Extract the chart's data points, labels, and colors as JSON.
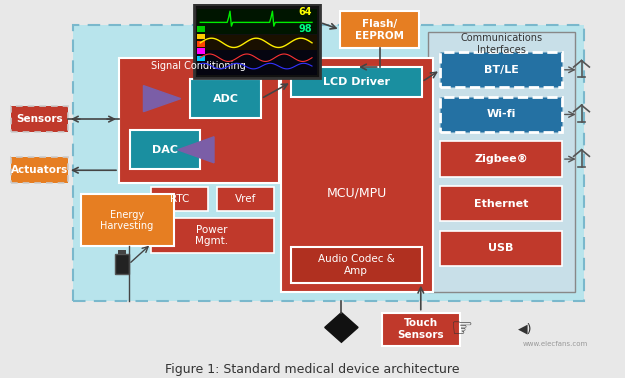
{
  "title": "Figure 1: Standard medical device architecture",
  "bg_main": "#b8e4ec",
  "color_red": "#c0392b",
  "color_orange": "#e67e22",
  "color_teal": "#1a8fa0",
  "color_blue": "#2471a3",
  "color_white": "#ffffff",
  "labels": {
    "sensors": "Sensors",
    "actuators": "Actuators",
    "energy": "Energy\nHarvesting",
    "flash": "Flash/\nEEPROM",
    "signal_cond": "Signal Conditioning",
    "adc": "ADC",
    "dac": "DAC",
    "lcd": "LCD Driver",
    "mcu": "MCU/MPU",
    "audio": "Audio Codec &\nAmp",
    "rtc": "RTC",
    "vref": "Vref",
    "power": "Power\nMgmt.",
    "touch": "Touch\nSensors",
    "comm_title": "Communications\nInterfaces",
    "bt": "BT/LE",
    "wifi": "Wi-fi",
    "zigbee": "Zigbee®",
    "ethernet": "Ethernet",
    "usb": "USB"
  }
}
